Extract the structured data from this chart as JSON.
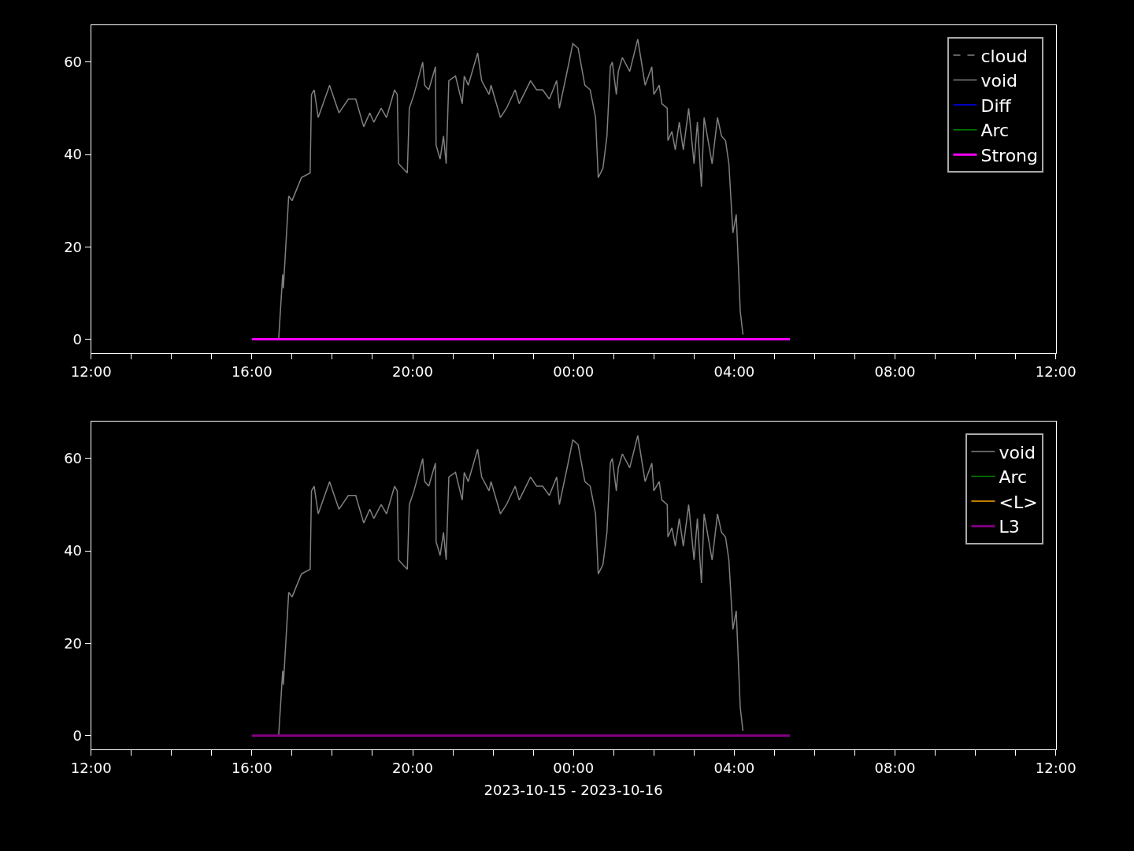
{
  "chart_data": [
    {
      "type": "line",
      "xlim": [
        "2023-10-15T12:00",
        "2023-10-16T12:00"
      ],
      "xticks": [
        {
          "value": "2023-10-15T12:00",
          "label": "12:00"
        },
        {
          "value": "2023-10-15T13:00",
          "label": null
        },
        {
          "value": "2023-10-15T14:00",
          "label": null
        },
        {
          "value": "2023-10-15T15:00",
          "label": null
        },
        {
          "value": "2023-10-15T16:00",
          "label": "16:00"
        },
        {
          "value": "2023-10-15T17:00",
          "label": null
        },
        {
          "value": "2023-10-15T18:00",
          "label": null
        },
        {
          "value": "2023-10-15T19:00",
          "label": null
        },
        {
          "value": "2023-10-15T20:00",
          "label": "20:00"
        },
        {
          "value": "2023-10-15T21:00",
          "label": null
        },
        {
          "value": "2023-10-15T22:00",
          "label": null
        },
        {
          "value": "2023-10-15T23:00",
          "label": null
        },
        {
          "value": "2023-10-16T00:00",
          "label": "00:00"
        },
        {
          "value": "2023-10-16T01:00",
          "label": null
        },
        {
          "value": "2023-10-16T02:00",
          "label": null
        },
        {
          "value": "2023-10-16T03:00",
          "label": null
        },
        {
          "value": "2023-10-16T04:00",
          "label": "04:00"
        },
        {
          "value": "2023-10-16T05:00",
          "label": null
        },
        {
          "value": "2023-10-16T06:00",
          "label": null
        },
        {
          "value": "2023-10-16T07:00",
          "label": null
        },
        {
          "value": "2023-10-16T08:00",
          "label": "08:00"
        },
        {
          "value": "2023-10-16T09:00",
          "label": null
        },
        {
          "value": "2023-10-16T10:00",
          "label": null
        },
        {
          "value": "2023-10-16T11:00",
          "label": null
        },
        {
          "value": "2023-10-16T12:00",
          "label": "12:00"
        }
      ],
      "ylim": [
        -3,
        68
      ],
      "yticks": [
        0,
        20,
        40,
        60
      ],
      "grid": false,
      "legend": "top right",
      "series": [
        {
          "name": "cloud",
          "color": "#808080",
          "line_style": "dashed",
          "values": [
            null,
            null
          ]
        },
        {
          "name": "void",
          "color": "#808080",
          "x": [
            "2023-10-15T16:40",
            "2023-10-15T16:46",
            "2023-10-15T16:47",
            "2023-10-15T16:55",
            "2023-10-15T17:00",
            "2023-10-15T17:14",
            "2023-10-15T17:27",
            "2023-10-15T17:29",
            "2023-10-15T17:33",
            "2023-10-15T17:39",
            "2023-10-15T17:56",
            "2023-10-15T18:10",
            "2023-10-15T18:24",
            "2023-10-15T18:35",
            "2023-10-15T18:47",
            "2023-10-15T18:56",
            "2023-10-15T19:02",
            "2023-10-15T19:13",
            "2023-10-15T19:21",
            "2023-10-15T19:33",
            "2023-10-15T19:37",
            "2023-10-15T19:39",
            "2023-10-15T19:52",
            "2023-10-15T19:55",
            "2023-10-15T20:02",
            "2023-10-15T20:15",
            "2023-10-15T20:18",
            "2023-10-15T20:24",
            "2023-10-15T20:34",
            "2023-10-15T20:35",
            "2023-10-15T20:41",
            "2023-10-15T20:46",
            "2023-10-15T20:50",
            "2023-10-15T20:54",
            "2023-10-15T21:04",
            "2023-10-15T21:14",
            "2023-10-15T21:17",
            "2023-10-15T21:23",
            "2023-10-15T21:37",
            "2023-10-15T21:43",
            "2023-10-15T21:54",
            "2023-10-15T21:57",
            "2023-10-15T22:11",
            "2023-10-15T22:20",
            "2023-10-15T22:33",
            "2023-10-15T22:39",
            "2023-10-15T22:56",
            "2023-10-15T23:05",
            "2023-10-15T23:14",
            "2023-10-15T23:24",
            "2023-10-15T23:35",
            "2023-10-15T23:39",
            "2023-10-15T23:52",
            "2023-10-15T23:59",
            "2023-10-16T00:07",
            "2023-10-16T00:17",
            "2023-10-16T00:25",
            "2023-10-16T00:33",
            "2023-10-16T00:37",
            "2023-10-16T00:44",
            "2023-10-16T00:50",
            "2023-10-16T00:55",
            "2023-10-16T00:58",
            "2023-10-16T01:04",
            "2023-10-16T01:07",
            "2023-10-16T01:13",
            "2023-10-16T01:24",
            "2023-10-16T01:36",
            "2023-10-16T01:47",
            "2023-10-16T01:57",
            "2023-10-16T02:00",
            "2023-10-16T02:08",
            "2023-10-16T02:12",
            "2023-10-16T02:20",
            "2023-10-16T02:21",
            "2023-10-16T02:27",
            "2023-10-16T02:32",
            "2023-10-16T02:38",
            "2023-10-16T02:44",
            "2023-10-16T02:52",
            "2023-10-16T03:00",
            "2023-10-16T03:05",
            "2023-10-16T03:11",
            "2023-10-16T03:15",
            "2023-10-16T03:21",
            "2023-10-16T03:27",
            "2023-10-16T03:35",
            "2023-10-16T03:41",
            "2023-10-16T03:47",
            "2023-10-16T03:52",
            "2023-10-16T03:58",
            "2023-10-16T04:03",
            "2023-10-16T04:09",
            "2023-10-16T04:13"
          ],
          "values": [
            0,
            14,
            11,
            31,
            30,
            35,
            36,
            53,
            54,
            48,
            55,
            49,
            52,
            52,
            46,
            49,
            47,
            50,
            48,
            54,
            53,
            38,
            36,
            50,
            53,
            60,
            55,
            54,
            59,
            42,
            39,
            44,
            38,
            56,
            57,
            51,
            57,
            55,
            62,
            56,
            53,
            55,
            48,
            50,
            54,
            51,
            56,
            54,
            54,
            52,
            56,
            50,
            59,
            64,
            63,
            55,
            54,
            48,
            35,
            37,
            44,
            59,
            60,
            53,
            58,
            61,
            58,
            65,
            55,
            59,
            53,
            55,
            51,
            50,
            43,
            45,
            41,
            47,
            41,
            50,
            38,
            47,
            33,
            48,
            43,
            38,
            48,
            44,
            43,
            38,
            23,
            27,
            6,
            1
          ]
        },
        {
          "name": "Diff",
          "color": "#0000ff",
          "values": [
            null,
            null
          ]
        },
        {
          "name": "Arc",
          "color": "#008000",
          "values": [
            null,
            null
          ]
        },
        {
          "name": "Strong",
          "color": "#ff00ff",
          "x": [
            "2023-10-15T16:00",
            "2023-10-16T05:23"
          ],
          "values": [
            0,
            0
          ]
        }
      ]
    },
    {
      "type": "line",
      "xlabel": "2023-10-15 - 2023-10-16",
      "xlim": [
        "2023-10-15T12:00",
        "2023-10-16T12:00"
      ],
      "xticks": [
        {
          "value": "2023-10-15T12:00",
          "label": "12:00"
        },
        {
          "value": "2023-10-15T13:00",
          "label": null
        },
        {
          "value": "2023-10-15T14:00",
          "label": null
        },
        {
          "value": "2023-10-15T15:00",
          "label": null
        },
        {
          "value": "2023-10-15T16:00",
          "label": "16:00"
        },
        {
          "value": "2023-10-15T17:00",
          "label": null
        },
        {
          "value": "2023-10-15T18:00",
          "label": null
        },
        {
          "value": "2023-10-15T19:00",
          "label": null
        },
        {
          "value": "2023-10-15T20:00",
          "label": "20:00"
        },
        {
          "value": "2023-10-15T21:00",
          "label": null
        },
        {
          "value": "2023-10-15T22:00",
          "label": null
        },
        {
          "value": "2023-10-15T23:00",
          "label": null
        },
        {
          "value": "2023-10-16T00:00",
          "label": "00:00"
        },
        {
          "value": "2023-10-16T01:00",
          "label": null
        },
        {
          "value": "2023-10-16T02:00",
          "label": null
        },
        {
          "value": "2023-10-16T03:00",
          "label": null
        },
        {
          "value": "2023-10-16T04:00",
          "label": "04:00"
        },
        {
          "value": "2023-10-16T05:00",
          "label": null
        },
        {
          "value": "2023-10-16T06:00",
          "label": null
        },
        {
          "value": "2023-10-16T07:00",
          "label": null
        },
        {
          "value": "2023-10-16T08:00",
          "label": "08:00"
        },
        {
          "value": "2023-10-16T09:00",
          "label": null
        },
        {
          "value": "2023-10-16T10:00",
          "label": null
        },
        {
          "value": "2023-10-16T11:00",
          "label": null
        },
        {
          "value": "2023-10-16T12:00",
          "label": "12:00"
        }
      ],
      "ylim": [
        -3,
        68
      ],
      "yticks": [
        0,
        20,
        40,
        60
      ],
      "grid": false,
      "legend": "top right",
      "series": [
        {
          "name": "void",
          "color": "#808080",
          "x": [
            "2023-10-15T16:40",
            "2023-10-15T16:46",
            "2023-10-15T16:47",
            "2023-10-15T16:55",
            "2023-10-15T17:00",
            "2023-10-15T17:14",
            "2023-10-15T17:27",
            "2023-10-15T17:29",
            "2023-10-15T17:33",
            "2023-10-15T17:39",
            "2023-10-15T17:56",
            "2023-10-15T18:10",
            "2023-10-15T18:24",
            "2023-10-15T18:35",
            "2023-10-15T18:47",
            "2023-10-15T18:56",
            "2023-10-15T19:02",
            "2023-10-15T19:13",
            "2023-10-15T19:21",
            "2023-10-15T19:33",
            "2023-10-15T19:37",
            "2023-10-15T19:39",
            "2023-10-15T19:52",
            "2023-10-15T19:55",
            "2023-10-15T20:02",
            "2023-10-15T20:15",
            "2023-10-15T20:18",
            "2023-10-15T20:24",
            "2023-10-15T20:34",
            "2023-10-15T20:35",
            "2023-10-15T20:41",
            "2023-10-15T20:46",
            "2023-10-15T20:50",
            "2023-10-15T20:54",
            "2023-10-15T21:04",
            "2023-10-15T21:14",
            "2023-10-15T21:17",
            "2023-10-15T21:23",
            "2023-10-15T21:37",
            "2023-10-15T21:43",
            "2023-10-15T21:54",
            "2023-10-15T21:57",
            "2023-10-15T22:11",
            "2023-10-15T22:20",
            "2023-10-15T22:33",
            "2023-10-15T22:39",
            "2023-10-15T22:56",
            "2023-10-15T23:05",
            "2023-10-15T23:14",
            "2023-10-15T23:24",
            "2023-10-15T23:35",
            "2023-10-15T23:39",
            "2023-10-15T23:52",
            "2023-10-15T23:59",
            "2023-10-16T00:07",
            "2023-10-16T00:17",
            "2023-10-16T00:25",
            "2023-10-16T00:33",
            "2023-10-16T00:37",
            "2023-10-16T00:44",
            "2023-10-16T00:50",
            "2023-10-16T00:55",
            "2023-10-16T00:58",
            "2023-10-16T01:04",
            "2023-10-16T01:07",
            "2023-10-16T01:13",
            "2023-10-16T01:24",
            "2023-10-16T01:36",
            "2023-10-16T01:47",
            "2023-10-16T01:57",
            "2023-10-16T02:00",
            "2023-10-16T02:08",
            "2023-10-16T02:12",
            "2023-10-16T02:20",
            "2023-10-16T02:21",
            "2023-10-16T02:27",
            "2023-10-16T02:32",
            "2023-10-16T02:38",
            "2023-10-16T02:44",
            "2023-10-16T02:52",
            "2023-10-16T03:00",
            "2023-10-16T03:05",
            "2023-10-16T03:11",
            "2023-10-16T03:15",
            "2023-10-16T03:21",
            "2023-10-16T03:27",
            "2023-10-16T03:35",
            "2023-10-16T03:41",
            "2023-10-16T03:47",
            "2023-10-16T03:52",
            "2023-10-16T03:58",
            "2023-10-16T04:03",
            "2023-10-16T04:09",
            "2023-10-16T04:13"
          ],
          "values": [
            0,
            14,
            11,
            31,
            30,
            35,
            36,
            53,
            54,
            48,
            55,
            49,
            52,
            52,
            46,
            49,
            47,
            50,
            48,
            54,
            53,
            38,
            36,
            50,
            53,
            60,
            55,
            54,
            59,
            42,
            39,
            44,
            38,
            56,
            57,
            51,
            57,
            55,
            62,
            56,
            53,
            55,
            48,
            50,
            54,
            51,
            56,
            54,
            54,
            52,
            56,
            50,
            59,
            64,
            63,
            55,
            54,
            48,
            35,
            37,
            44,
            59,
            60,
            53,
            58,
            61,
            58,
            65,
            55,
            59,
            53,
            55,
            51,
            50,
            43,
            45,
            41,
            47,
            41,
            50,
            38,
            47,
            33,
            48,
            43,
            38,
            48,
            44,
            43,
            38,
            23,
            27,
            6,
            1
          ]
        },
        {
          "name": "Arc",
          "color": "#008000",
          "values": [
            null,
            null
          ]
        },
        {
          "name": "<L>",
          "color": "#ffa500",
          "values": [
            null,
            null
          ]
        },
        {
          "name": "L3",
          "color": "#800080",
          "x": [
            "2023-10-15T16:00",
            "2023-10-16T05:23"
          ],
          "values": [
            0,
            0
          ]
        }
      ]
    }
  ]
}
